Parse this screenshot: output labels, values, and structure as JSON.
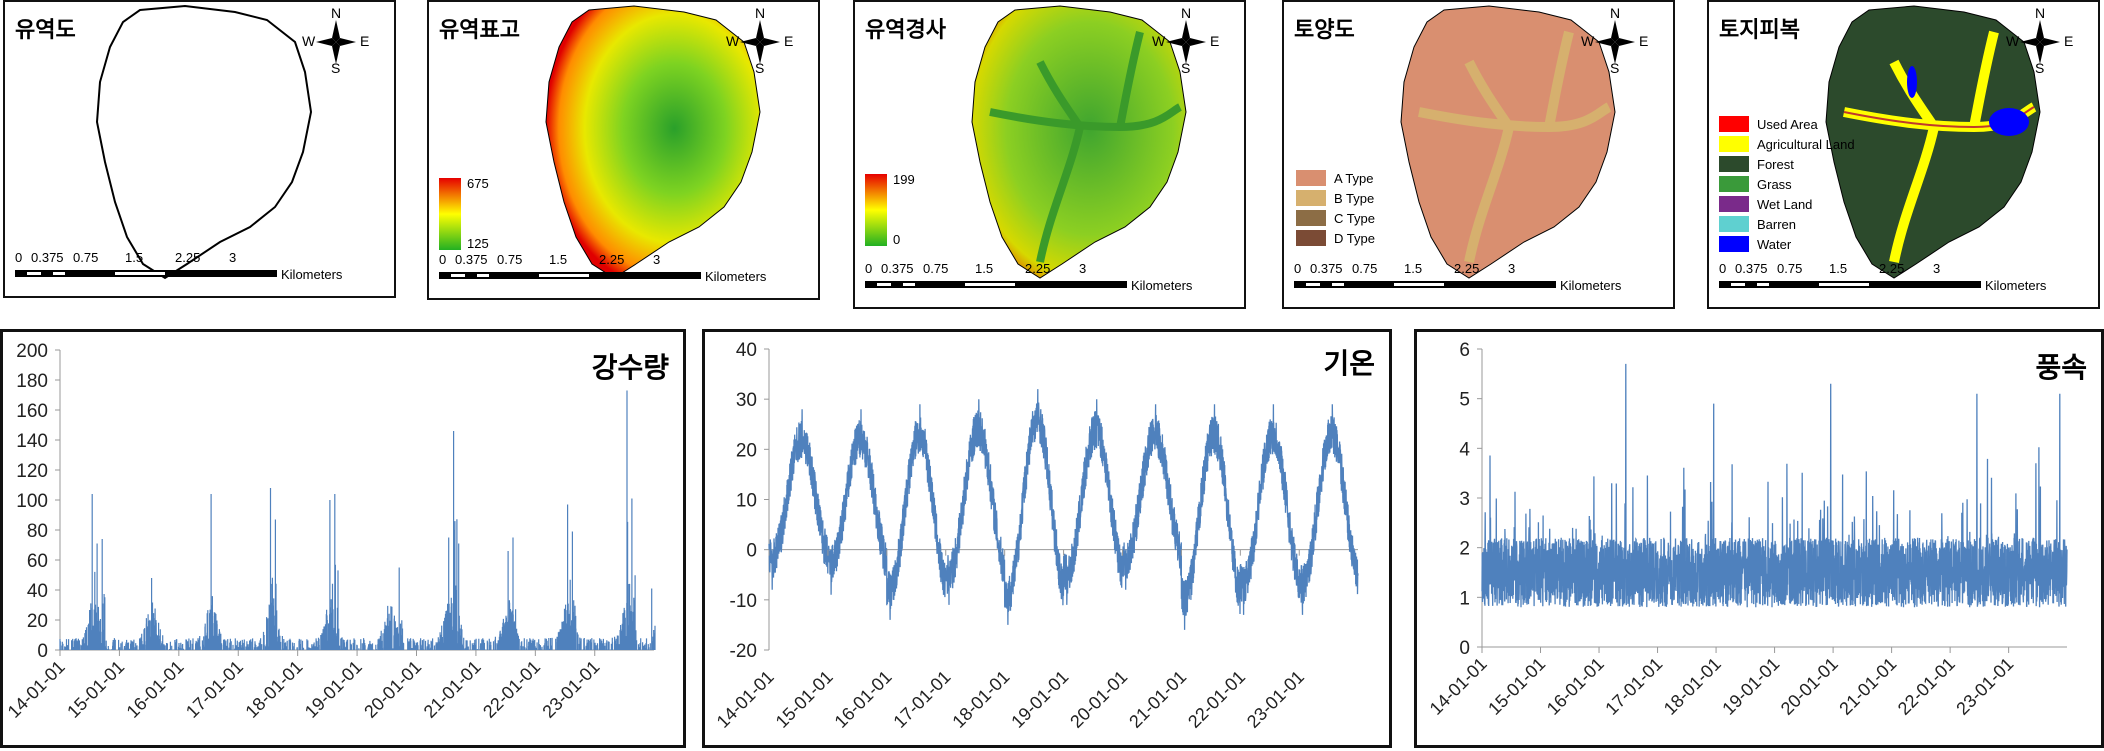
{
  "maps": [
    {
      "id": "watershed",
      "title": "유역도",
      "fill": "outline"
    },
    {
      "id": "elevation",
      "title": "유역표고",
      "fill": "elevation",
      "colorbar": {
        "max": "675",
        "min": "125"
      }
    },
    {
      "id": "slope",
      "title": "유역경사",
      "fill": "slope",
      "colorbar": {
        "max": "199",
        "min": "0"
      }
    },
    {
      "id": "soil",
      "title": "토양도",
      "fill": "soil",
      "legend": [
        {
          "label": "A Type",
          "color": "#d98f70"
        },
        {
          "label": "B Type",
          "color": "#d6b06e"
        },
        {
          "label": "C Type",
          "color": "#8c6d45"
        },
        {
          "label": "D Type",
          "color": "#7b4b35"
        }
      ]
    },
    {
      "id": "landcover",
      "title": "토지피복",
      "fill": "landcover",
      "legend": [
        {
          "label": "Used Area",
          "color": "#ff0000"
        },
        {
          "label": "Agricultural Land",
          "color": "#ffff00"
        },
        {
          "label": "Forest",
          "color": "#2c4a2c"
        },
        {
          "label": "Grass",
          "color": "#3a9a3a"
        },
        {
          "label": "Wet Land",
          "color": "#7a2a8a"
        },
        {
          "label": "Barren",
          "color": "#5fd0d0"
        },
        {
          "label": "Water",
          "color": "#0000ff"
        }
      ]
    }
  ],
  "compass": {
    "n": "N",
    "s": "S",
    "w": "W",
    "e": "E"
  },
  "scalebar": {
    "labels": [
      "0",
      "0.375",
      "0.75",
      "1.5",
      "2.25",
      "3"
    ],
    "unit": "Kilometers"
  },
  "chart_data": [
    {
      "type": "bar",
      "title": "강수량",
      "ylim": [
        0,
        200
      ],
      "yticks": [
        0,
        20,
        40,
        60,
        80,
        100,
        120,
        140,
        160,
        180,
        200
      ],
      "xticks": [
        "14-01-01",
        "15-01-01",
        "16-01-01",
        "17-01-01",
        "18-01-01",
        "19-01-01",
        "20-01-01",
        "21-01-01",
        "22-01-01",
        "23-01-01"
      ],
      "color": "#4f81bd",
      "baseline": "daily 0-20",
      "peaks": [
        {
          "x": "2014-07",
          "y": 104
        },
        {
          "x": "2014-08",
          "y": 71
        },
        {
          "x": "2014-09",
          "y": 74
        },
        {
          "x": "2015-07",
          "y": 48
        },
        {
          "x": "2016-07",
          "y": 104
        },
        {
          "x": "2017-07",
          "y": 108
        },
        {
          "x": "2017-08",
          "y": 87
        },
        {
          "x": "2018-07",
          "y": 100
        },
        {
          "x": "2018-08",
          "y": 104
        },
        {
          "x": "2019-09",
          "y": 55
        },
        {
          "x": "2020-07",
          "y": 75
        },
        {
          "x": "2020-08",
          "y": 146
        },
        {
          "x": "2020-09",
          "y": 71
        },
        {
          "x": "2021-07",
          "y": 66
        },
        {
          "x": "2021-08",
          "y": 75
        },
        {
          "x": "2022-07",
          "y": 97
        },
        {
          "x": "2022-08",
          "y": 79
        },
        {
          "x": "2023-07",
          "y": 173
        },
        {
          "x": "2023-08",
          "y": 101
        },
        {
          "x": "2023-12",
          "y": 41
        }
      ]
    },
    {
      "type": "line",
      "title": "기온",
      "ylim": [
        -20,
        40
      ],
      "yticks": [
        -20,
        -10,
        0,
        10,
        20,
        30,
        40
      ],
      "xticks": [
        "14-01-01",
        "15-01-01",
        "16-01-01",
        "17-01-01",
        "18-01-01",
        "19-01-01",
        "20-01-01",
        "21-01-01",
        "22-01-01",
        "23-01-01"
      ],
      "color": "#4f81bd",
      "annual_max": [
        28,
        28,
        29,
        30,
        32,
        30,
        29,
        29,
        29,
        29
      ],
      "annual_min": [
        -8,
        -9,
        -14,
        -11,
        -15,
        -11,
        -8,
        -16,
        -13,
        -13
      ]
    },
    {
      "type": "line",
      "title": "풍속",
      "ylim": [
        0,
        6
      ],
      "yticks": [
        0,
        1,
        2,
        3,
        4,
        5,
        6
      ],
      "xticks": [
        "14-01-01",
        "15-01-01",
        "16-01-01",
        "17-01-01",
        "18-01-01",
        "19-01-01",
        "20-01-01",
        "21-01-01",
        "22-01-01",
        "23-01-01"
      ],
      "color": "#4f81bd",
      "mean": 1.5,
      "peaks": [
        {
          "x": "2016-06",
          "y": 5.7
        },
        {
          "x": "2019-12",
          "y": 5.3
        },
        {
          "x": "2022-06",
          "y": 5.1
        },
        {
          "x": "2023-11",
          "y": 5.1
        },
        {
          "x": "2017-12",
          "y": 4.9
        }
      ]
    }
  ]
}
